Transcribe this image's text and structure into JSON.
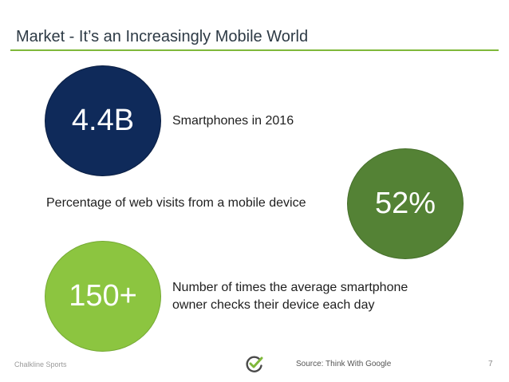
{
  "slide": {
    "title": "Market - It’s an Increasingly Mobile World",
    "accent_color": "#7fb83a"
  },
  "stats": [
    {
      "value": "4.4B",
      "label": "Smartphones in 2016",
      "color": "#0f2a5a"
    },
    {
      "value": "52%",
      "label": "Percentage of web visits from a mobile device",
      "color": "#548235"
    },
    {
      "value": "150+",
      "label_line1": "Number of times the average smartphone",
      "label_line2": "owner checks their device each day",
      "color": "#8cc540"
    }
  ],
  "footer": {
    "brand": "Chalkline Sports",
    "logo_icon": "chalkline-check-logo-icon",
    "source": "Source: Think With Google",
    "page_number": "7"
  }
}
